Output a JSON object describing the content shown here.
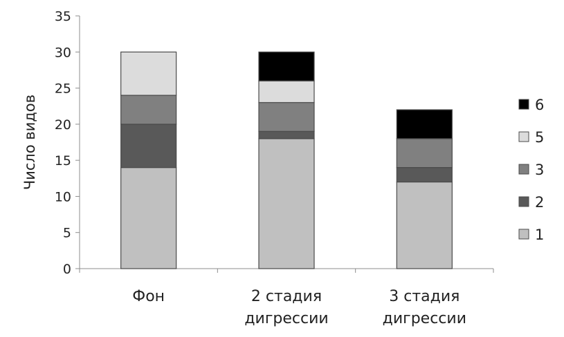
{
  "chart_data": {
    "type": "bar",
    "stacked": true,
    "categories": [
      [
        "Фон"
      ],
      [
        "2 стадия",
        "дигрессии"
      ],
      [
        "3 стадия",
        "дигрессии"
      ]
    ],
    "series": [
      {
        "name": "1",
        "color": "#c0c0c0",
        "values": [
          14,
          18,
          12
        ]
      },
      {
        "name": "2",
        "color": "#595959",
        "values": [
          6,
          1,
          2
        ]
      },
      {
        "name": "3",
        "color": "#808080",
        "values": [
          4,
          4,
          4
        ]
      },
      {
        "name": "5",
        "color": "#dcdcdc",
        "values": [
          6,
          3,
          0
        ]
      },
      {
        "name": "6",
        "color": "#000000",
        "values": [
          0,
          4,
          4
        ]
      }
    ],
    "ylabel": "Число видов",
    "ylim": [
      0,
      35
    ],
    "yticks": [
      0,
      5,
      10,
      15,
      20,
      25,
      30,
      35
    ],
    "grid": false,
    "legend": {
      "position": "right",
      "order": [
        "6",
        "5",
        "3",
        "2",
        "1"
      ]
    }
  }
}
